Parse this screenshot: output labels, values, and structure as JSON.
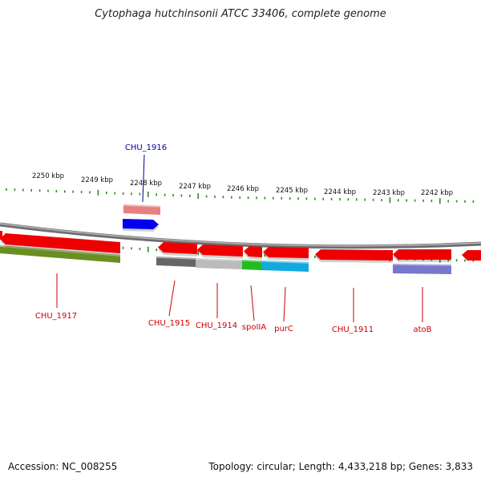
{
  "title": "Cytophaga hutchinsonii ATCC 33406, complete genome",
  "footer": {
    "accession": "Accession: NC_008255",
    "summary": "Topology: circular; Length: 4,433,218 bp; Genes: 3,833"
  },
  "colors": {
    "backbone": "#8a8a8a",
    "tick": "#2e8b1f",
    "gene_label": "#cc0000",
    "gene_label_blue": "#000099",
    "gene_red": "#ee0000"
  },
  "scale_labels": [
    "2250 kbp",
    "2249 kbp",
    "2248 kbp",
    "2247 kbp",
    "2246 kbp",
    "2245 kbp",
    "2244 kbp",
    "2243 kbp",
    "2242 kbp"
  ],
  "genes": [
    {
      "label": "CHU_1917",
      "strand": "reverse",
      "color": "#ee0000",
      "label_color": "#cc0000"
    },
    {
      "label": "CHU_1916",
      "strand": "forward",
      "color": "#0000ee",
      "label_color": "#000099"
    },
    {
      "label": "CHU_1915",
      "strand": "reverse",
      "color": "#ee0000",
      "label_color": "#cc0000"
    },
    {
      "label": "CHU_1914",
      "strand": "reverse",
      "color": "#ee0000",
      "label_color": "#cc0000"
    },
    {
      "label": "spoIIA",
      "strand": "reverse",
      "color": "#ee0000",
      "label_color": "#cc0000"
    },
    {
      "label": "purC",
      "strand": "reverse",
      "color": "#ee0000",
      "label_color": "#cc0000"
    },
    {
      "label": "CHU_1911",
      "strand": "reverse",
      "color": "#ee0000",
      "label_color": "#cc0000"
    },
    {
      "label": "atoB",
      "strand": "reverse",
      "color": "#ee0000",
      "label_color": "#cc0000"
    }
  ],
  "category_bars": [
    {
      "color": "#6b8e23"
    },
    {
      "color": "#e88080"
    },
    {
      "color": "#666666"
    },
    {
      "color": "#bbbbbb"
    },
    {
      "color": "#22bb22"
    },
    {
      "color": "#11aadd"
    },
    {
      "color": "#7777cc"
    }
  ]
}
